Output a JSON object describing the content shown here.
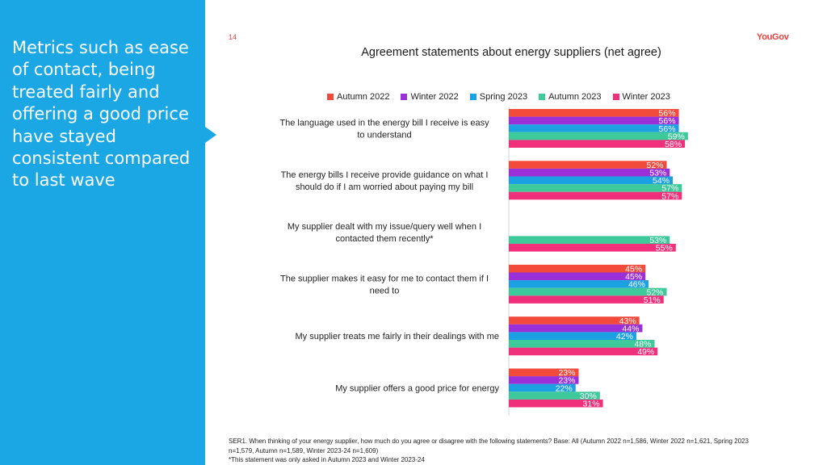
{
  "sidebar": {
    "headline": "Metrics such as ease of contact, being treated fairly and offering a good price have stayed consistent compared to last wave",
    "bg_color": "#1aa7e4"
  },
  "page_number": "14",
  "logo": "YouGov",
  "footnote": {
    "line1": "SER1. When thinking of your energy supplier, how much do you agree or disagree with the following statements? Base: All (Autumn 2022 n=1,586, Winter 2022 n=1,621, Spring 2023",
    "line2": "n=1,579, Autumn n=1,589, Winter 2023-24 n=1,609)",
    "line3": "*This statement was only asked in Autumn 2023 and Winter 2023-24"
  },
  "chart_data": {
    "type": "bar",
    "orientation": "horizontal",
    "title": "Agreement statements about energy suppliers (net agree)",
    "value_suffix": "%",
    "legend_position": "top",
    "categories": [
      "The language used in the energy bill I receive is easy to understand",
      "The energy bills I receive provide guidance on what I should do if I am worried about paying my bill",
      "My supplier dealt with my issue/query well when I contacted them recently*",
      "The supplier makes it easy for me to contact them if I need to",
      "My supplier treats me fairly in their dealings with me",
      "My supplier offers a good price for energy"
    ],
    "series": [
      {
        "name": "Autumn 2022",
        "color": "#f24b3b",
        "values": [
          56,
          52,
          null,
          45,
          43,
          23
        ]
      },
      {
        "name": "Winter 2022",
        "color": "#9b30d9",
        "values": [
          56,
          53,
          null,
          45,
          44,
          23
        ]
      },
      {
        "name": "Spring 2023",
        "color": "#1ba1e2",
        "values": [
          56,
          54,
          null,
          46,
          42,
          22
        ]
      },
      {
        "name": "Autumn 2023",
        "color": "#3ec99a",
        "values": [
          59,
          57,
          53,
          52,
          48,
          30
        ]
      },
      {
        "name": "Winter 2023",
        "color": "#f0307a",
        "values": [
          58,
          57,
          55,
          51,
          49,
          31
        ]
      }
    ],
    "xlim": [
      0,
      100
    ],
    "grid": false
  }
}
